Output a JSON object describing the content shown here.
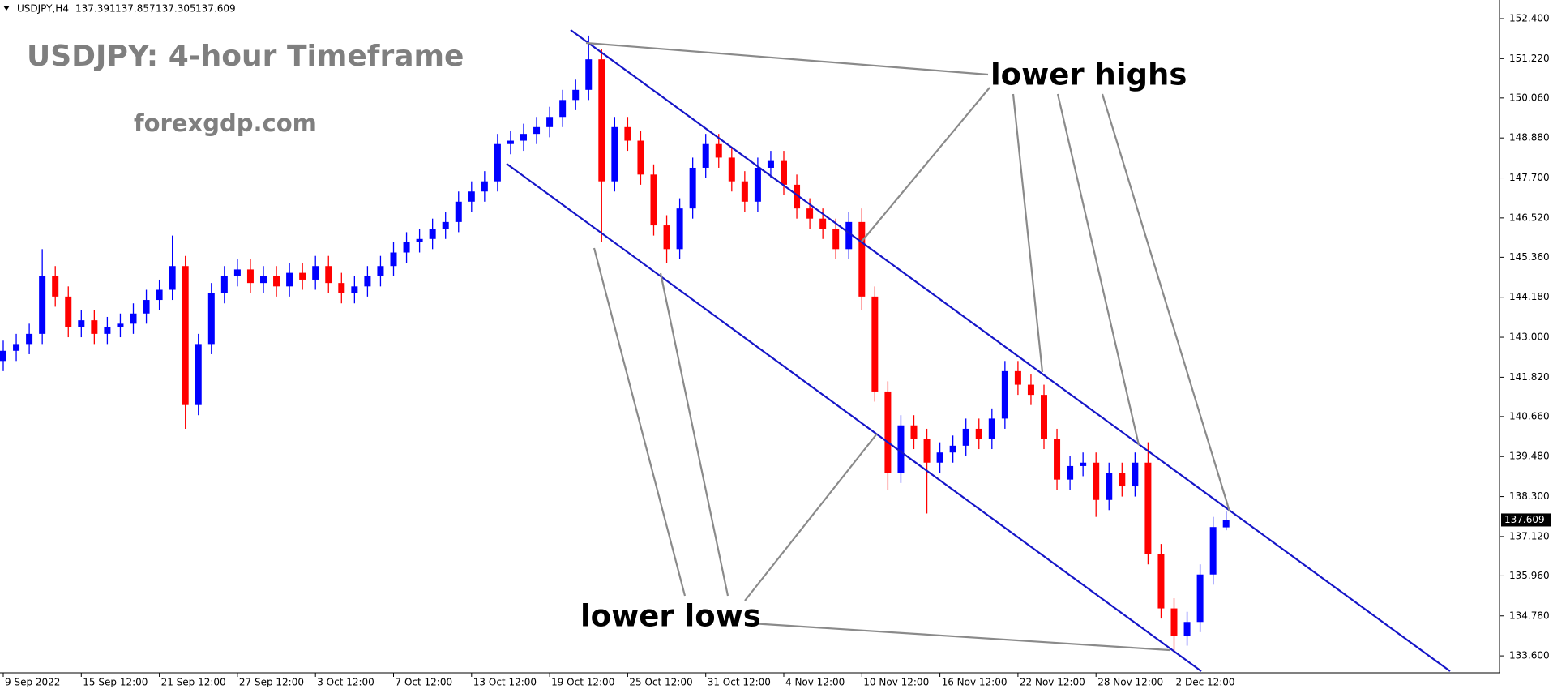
{
  "chart_data": {
    "type": "candlestick",
    "symbol": "USDJPY,H4",
    "title": "USDJPY: 4-hour Timeframe",
    "subtitle": "forexgdp.com",
    "annotations": [
      "lower highs",
      "lower lows"
    ],
    "up_color": "#0000ff",
    "down_color": "#ff0000",
    "categories": [
      "9 Sep 2022",
      null,
      null,
      null,
      null,
      null,
      "15 Sep 12:00",
      null,
      null,
      null,
      null,
      null,
      "21 Sep 12:00",
      null,
      null,
      null,
      null,
      null,
      "27 Sep 12:00",
      null,
      null,
      null,
      null,
      null,
      "3 Oct 12:00",
      null,
      null,
      null,
      null,
      null,
      "7 Oct 12:00",
      null,
      null,
      null,
      null,
      null,
      "13 Oct 12:00",
      null,
      null,
      null,
      null,
      null,
      "19 Oct 12:00",
      null,
      null,
      null,
      null,
      null,
      "25 Oct 12:00",
      null,
      null,
      null,
      null,
      null,
      "31 Oct 12:00",
      null,
      null,
      null,
      null,
      null,
      "4 Nov 12:00",
      null,
      null,
      null,
      null,
      null,
      "10 Nov 12:00",
      null,
      null,
      null,
      null,
      null,
      "16 Nov 12:00",
      null,
      null,
      null,
      null,
      null,
      "22 Nov 12:00",
      null,
      null,
      null,
      null,
      null,
      "28 Nov 12:00",
      null,
      null,
      null,
      null,
      null,
      "2 Dec 12:00",
      null,
      null,
      null,
      null
    ],
    "open": [
      142.3,
      142.6,
      142.8,
      143.1,
      144.8,
      144.2,
      143.3,
      143.5,
      143.1,
      143.3,
      143.4,
      143.7,
      144.1,
      144.4,
      145.1,
      141.0,
      142.8,
      144.3,
      144.8,
      145.0,
      144.6,
      144.8,
      144.5,
      144.9,
      144.7,
      145.1,
      144.6,
      144.3,
      144.5,
      144.8,
      145.1,
      145.5,
      145.8,
      145.9,
      146.2,
      146.4,
      147.0,
      147.3,
      147.6,
      148.7,
      148.8,
      149.0,
      149.2,
      149.5,
      150.0,
      150.3,
      151.2,
      147.6,
      149.2,
      148.8,
      147.8,
      146.3,
      145.6,
      146.8,
      148.0,
      148.7,
      148.3,
      147.6,
      147.0,
      148.0,
      148.2,
      147.5,
      146.8,
      146.5,
      146.2,
      145.6,
      146.4,
      144.2,
      141.4,
      139.0,
      140.4,
      140.0,
      139.3,
      139.6,
      139.8,
      140.3,
      140.0,
      140.6,
      142.0,
      141.6,
      141.3,
      140.0,
      138.8,
      139.2,
      139.3,
      138.2,
      139.0,
      138.6,
      139.3,
      136.6,
      135.0,
      134.2,
      134.6,
      136.0,
      137.391
    ],
    "high": [
      142.9,
      143.1,
      143.4,
      145.6,
      145.1,
      144.5,
      143.8,
      143.8,
      143.6,
      143.7,
      144.0,
      144.4,
      144.7,
      146.0,
      145.4,
      143.1,
      144.6,
      145.1,
      145.3,
      145.3,
      145.1,
      145.1,
      145.2,
      145.2,
      145.4,
      145.4,
      144.9,
      144.8,
      145.1,
      145.4,
      145.8,
      146.1,
      146.2,
      146.5,
      146.7,
      147.3,
      147.6,
      147.9,
      149.0,
      149.1,
      149.3,
      149.5,
      149.8,
      150.3,
      150.6,
      151.9,
      151.5,
      149.5,
      149.5,
      149.1,
      148.1,
      146.6,
      147.1,
      148.3,
      149.0,
      149.0,
      148.6,
      147.9,
      148.3,
      148.5,
      148.5,
      147.8,
      147.1,
      146.8,
      146.5,
      146.7,
      146.8,
      144.5,
      141.7,
      140.7,
      140.7,
      140.3,
      139.9,
      140.1,
      140.6,
      140.6,
      140.9,
      142.3,
      142.3,
      141.9,
      141.6,
      140.3,
      139.5,
      139.6,
      139.6,
      139.3,
      139.3,
      139.6,
      139.9,
      136.9,
      135.3,
      134.9,
      136.3,
      137.7,
      137.857
    ],
    "low": [
      142.0,
      142.3,
      142.5,
      142.8,
      143.9,
      143.0,
      143.0,
      142.8,
      142.8,
      143.0,
      143.1,
      143.4,
      143.8,
      144.1,
      140.3,
      140.7,
      142.5,
      144.0,
      144.5,
      144.3,
      144.3,
      144.2,
      144.2,
      144.4,
      144.4,
      144.3,
      144.0,
      144.0,
      144.2,
      144.5,
      144.8,
      145.2,
      145.5,
      145.6,
      145.9,
      146.1,
      146.7,
      147.0,
      147.3,
      148.4,
      148.5,
      148.7,
      148.9,
      149.2,
      149.7,
      150.0,
      145.8,
      147.3,
      148.5,
      147.5,
      146.0,
      145.2,
      145.3,
      146.5,
      147.7,
      148.0,
      147.3,
      146.7,
      146.7,
      147.7,
      147.2,
      146.5,
      146.2,
      145.9,
      145.3,
      145.3,
      143.8,
      141.1,
      138.5,
      138.7,
      139.7,
      137.8,
      139.0,
      139.3,
      139.5,
      139.7,
      139.7,
      140.3,
      141.3,
      141.0,
      139.7,
      138.5,
      138.5,
      138.9,
      137.7,
      137.9,
      138.3,
      138.3,
      136.3,
      134.7,
      133.7,
      133.9,
      134.3,
      135.7,
      137.305
    ],
    "close": [
      142.6,
      142.8,
      143.1,
      144.8,
      144.2,
      143.3,
      143.5,
      143.1,
      143.3,
      143.4,
      143.7,
      144.1,
      144.4,
      145.1,
      141.0,
      142.8,
      144.3,
      144.8,
      145.0,
      144.6,
      144.8,
      144.5,
      144.9,
      144.7,
      145.1,
      144.6,
      144.3,
      144.5,
      144.8,
      145.1,
      145.5,
      145.8,
      145.9,
      146.2,
      146.4,
      147.0,
      147.3,
      147.6,
      148.7,
      148.8,
      149.0,
      149.2,
      149.5,
      150.0,
      150.3,
      151.2,
      147.6,
      149.2,
      148.8,
      147.8,
      146.3,
      145.6,
      146.8,
      148.0,
      148.7,
      148.3,
      147.6,
      147.0,
      148.0,
      148.2,
      147.5,
      146.8,
      146.5,
      146.2,
      145.6,
      146.4,
      144.2,
      141.4,
      139.0,
      140.4,
      140.0,
      139.3,
      139.6,
      139.8,
      140.3,
      140.0,
      140.6,
      142.0,
      141.6,
      141.3,
      140.0,
      138.8,
      139.2,
      139.3,
      138.2,
      139.0,
      138.6,
      139.3,
      136.6,
      135.0,
      134.2,
      134.6,
      136.0,
      137.4,
      137.609
    ],
    "ylim": [
      133.1,
      152.95
    ],
    "yticks": [
      {
        "value": 152.4,
        "label": "152.400"
      },
      {
        "value": 151.22,
        "label": "151.220"
      },
      {
        "value": 150.06,
        "label": "150.060"
      },
      {
        "value": 148.88,
        "label": "148.880"
      },
      {
        "value": 147.7,
        "label": "147.700"
      },
      {
        "value": 146.52,
        "label": "146.520"
      },
      {
        "value": 145.36,
        "label": "145.360"
      },
      {
        "value": 144.18,
        "label": "144.180"
      },
      {
        "value": 143.0,
        "label": "143.000"
      },
      {
        "value": 141.82,
        "label": "141.820"
      },
      {
        "value": 140.66,
        "label": "140.660"
      },
      {
        "value": 139.48,
        "label": "139.480"
      },
      {
        "value": 138.3,
        "label": "138.300"
      },
      {
        "value": 137.12,
        "label": "137.120"
      },
      {
        "value": 135.96,
        "label": "135.960"
      },
      {
        "value": 134.78,
        "label": "134.780"
      },
      {
        "value": 133.6,
        "label": "133.600"
      }
    ]
  }
}
